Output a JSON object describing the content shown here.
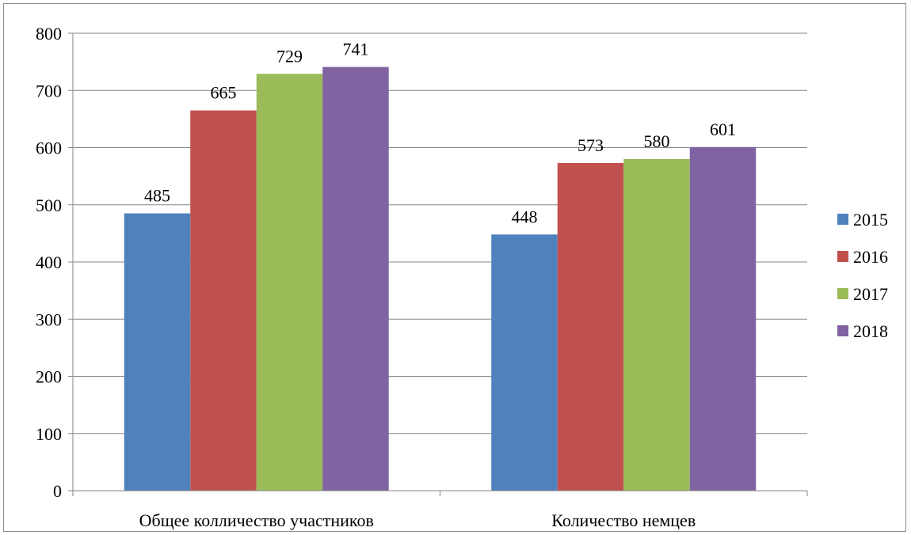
{
  "chart_data": {
    "type": "bar",
    "categories": [
      "Общее колличество участников",
      "Количество немцев"
    ],
    "series": [
      {
        "name": "2015",
        "values": [
          485,
          448
        ],
        "color": "#4F81BD"
      },
      {
        "name": "2016",
        "values": [
          665,
          573
        ],
        "color": "#C0504D"
      },
      {
        "name": "2017",
        "values": [
          729,
          580
        ],
        "color": "#9BBB59"
      },
      {
        "name": "2018",
        "values": [
          741,
          601
        ],
        "color": "#8064A2"
      }
    ],
    "yticks": [
      "0",
      "100",
      "200",
      "300",
      "400",
      "500",
      "600",
      "700",
      "800"
    ],
    "ylim": [
      0,
      800
    ],
    "grid": true,
    "legend_position": "right",
    "data_labels": true,
    "title": "",
    "xlabel": "",
    "ylabel": ""
  }
}
